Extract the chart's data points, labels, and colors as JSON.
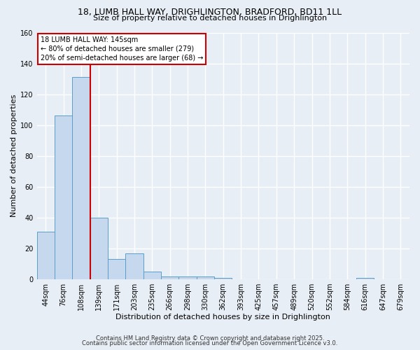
{
  "title1": "18, LUMB HALL WAY, DRIGHLINGTON, BRADFORD, BD11 1LL",
  "title2": "Size of property relative to detached houses in Drighlington",
  "xlabel": "Distribution of detached houses by size in Drighlington",
  "ylabel": "Number of detached properties",
  "bar_values": [
    31,
    106,
    131,
    40,
    13,
    17,
    5,
    2,
    2,
    2,
    1,
    0,
    0,
    0,
    0,
    0,
    0,
    0,
    1,
    0,
    0
  ],
  "bar_labels": [
    "44sqm",
    "76sqm",
    "108sqm",
    "139sqm",
    "171sqm",
    "203sqm",
    "235sqm",
    "266sqm",
    "298sqm",
    "330sqm",
    "362sqm",
    "393sqm",
    "425sqm",
    "457sqm",
    "489sqm",
    "520sqm",
    "552sqm",
    "584sqm",
    "616sqm",
    "647sqm",
    "679sqm"
  ],
  "bar_color": "#c5d8ed",
  "bar_edgecolor": "#5a9ec9",
  "bar_width": 1.0,
  "ylim": [
    0,
    160
  ],
  "yticks": [
    0,
    20,
    40,
    60,
    80,
    100,
    120,
    140,
    160
  ],
  "red_line_x": 2.5,
  "annotation_title": "18 LUMB HALL WAY: 145sqm",
  "annotation_line1": "← 80% of detached houses are smaller (279)",
  "annotation_line2": "20% of semi-detached houses are larger (68) →",
  "annotation_color": "#cc0000",
  "background_color": "#e8eef6",
  "grid_color": "#ffffff",
  "footer1": "Contains HM Land Registry data © Crown copyright and database right 2025.",
  "footer2": "Contains public sector information licensed under the Open Government Licence v3.0.",
  "title1_fontsize": 9,
  "title2_fontsize": 8,
  "axis_label_fontsize": 8,
  "tick_fontsize": 7,
  "annotation_fontsize": 7,
  "footer_fontsize": 6
}
